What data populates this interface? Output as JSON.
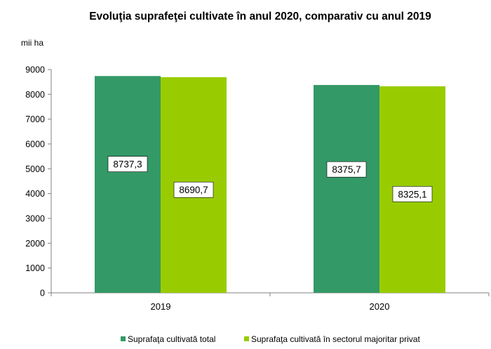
{
  "chart_data": {
    "type": "bar",
    "title": "Evoluţia suprafeţei cultivate în anul 2020, comparativ cu anul 2019",
    "ylabel": "mii ha",
    "xlabel": "",
    "categories": [
      "2019",
      "2020"
    ],
    "ylim": [
      0,
      9000
    ],
    "yticks": [
      0,
      1000,
      2000,
      3000,
      4000,
      5000,
      6000,
      7000,
      8000,
      9000
    ],
    "grid": false,
    "legend_position": "bottom",
    "series": [
      {
        "name": "Suprafaţa cultivată total",
        "values": [
          8737.3,
          8375.7
        ],
        "labels": [
          "8737,3",
          "8375,7"
        ],
        "color": "#339966"
      },
      {
        "name": "Suprafaţa cultivată în sectorul majoritar privat",
        "values": [
          8690.7,
          8325.1
        ],
        "labels": [
          "8690,7",
          "8325,1"
        ],
        "color": "#99cc00"
      }
    ]
  }
}
